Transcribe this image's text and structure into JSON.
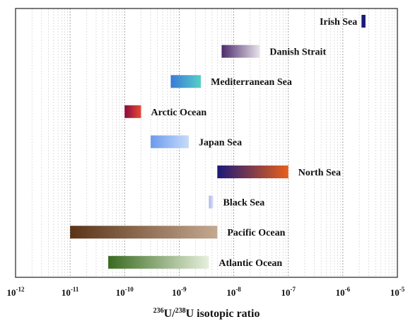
{
  "chart_data": {
    "type": "bar",
    "orientation": "horizontal-range",
    "x_scale": "log10",
    "xlim": [
      1e-12,
      1e-05
    ],
    "x_tick_exponents": [
      -12,
      -11,
      -10,
      -9,
      -8,
      -7,
      -6,
      -5
    ],
    "x_tick_base": "10",
    "xlabel": {
      "sup1": "236",
      "part1": "U/",
      "sup2": "238",
      "part2": "U isotopic ratio"
    },
    "grid": "vertical-dotted",
    "series": [
      {
        "name": "Irish Sea",
        "x_min": 2.2e-06,
        "x_max": 2.6e-06,
        "colors": [
          "#1a1a7a",
          "#1a1a7a"
        ]
      },
      {
        "name": "Danish Strait",
        "x_min": 6e-09,
        "x_max": 3e-08,
        "colors": [
          "#4b2a6b",
          "#e8e4ea"
        ]
      },
      {
        "name": "Mediterranean Sea",
        "x_min": 7e-10,
        "x_max": 2.5e-09,
        "colors": [
          "#3a7ad8",
          "#55d0c8"
        ]
      },
      {
        "name": "Arctic Ocean",
        "x_min": 1e-10,
        "x_max": 2e-10,
        "colors": [
          "#8a0a3a",
          "#e84a3a"
        ]
      },
      {
        "name": "Japan Sea",
        "x_min": 3e-10,
        "x_max": 1.5e-09,
        "colors": [
          "#6a9aee",
          "#c8dcf8"
        ]
      },
      {
        "name": "North Sea",
        "x_min": 5e-09,
        "x_max": 1e-07,
        "colors": [
          "#1a1a7a",
          "#e8601a"
        ]
      },
      {
        "name": "Black Sea",
        "x_min": 3.5e-09,
        "x_max": 4.2e-09,
        "colors": [
          "#a8b4e8",
          "#dde2f6"
        ]
      },
      {
        "name": "Pacific Ocean",
        "x_min": 1e-11,
        "x_max": 5e-09,
        "colors": [
          "#5a3418",
          "#c4a890"
        ]
      },
      {
        "name": "Atlantic Ocean",
        "x_min": 5e-11,
        "x_max": 3.5e-09,
        "colors": [
          "#3a6a20",
          "#e6f0dc"
        ]
      }
    ]
  }
}
